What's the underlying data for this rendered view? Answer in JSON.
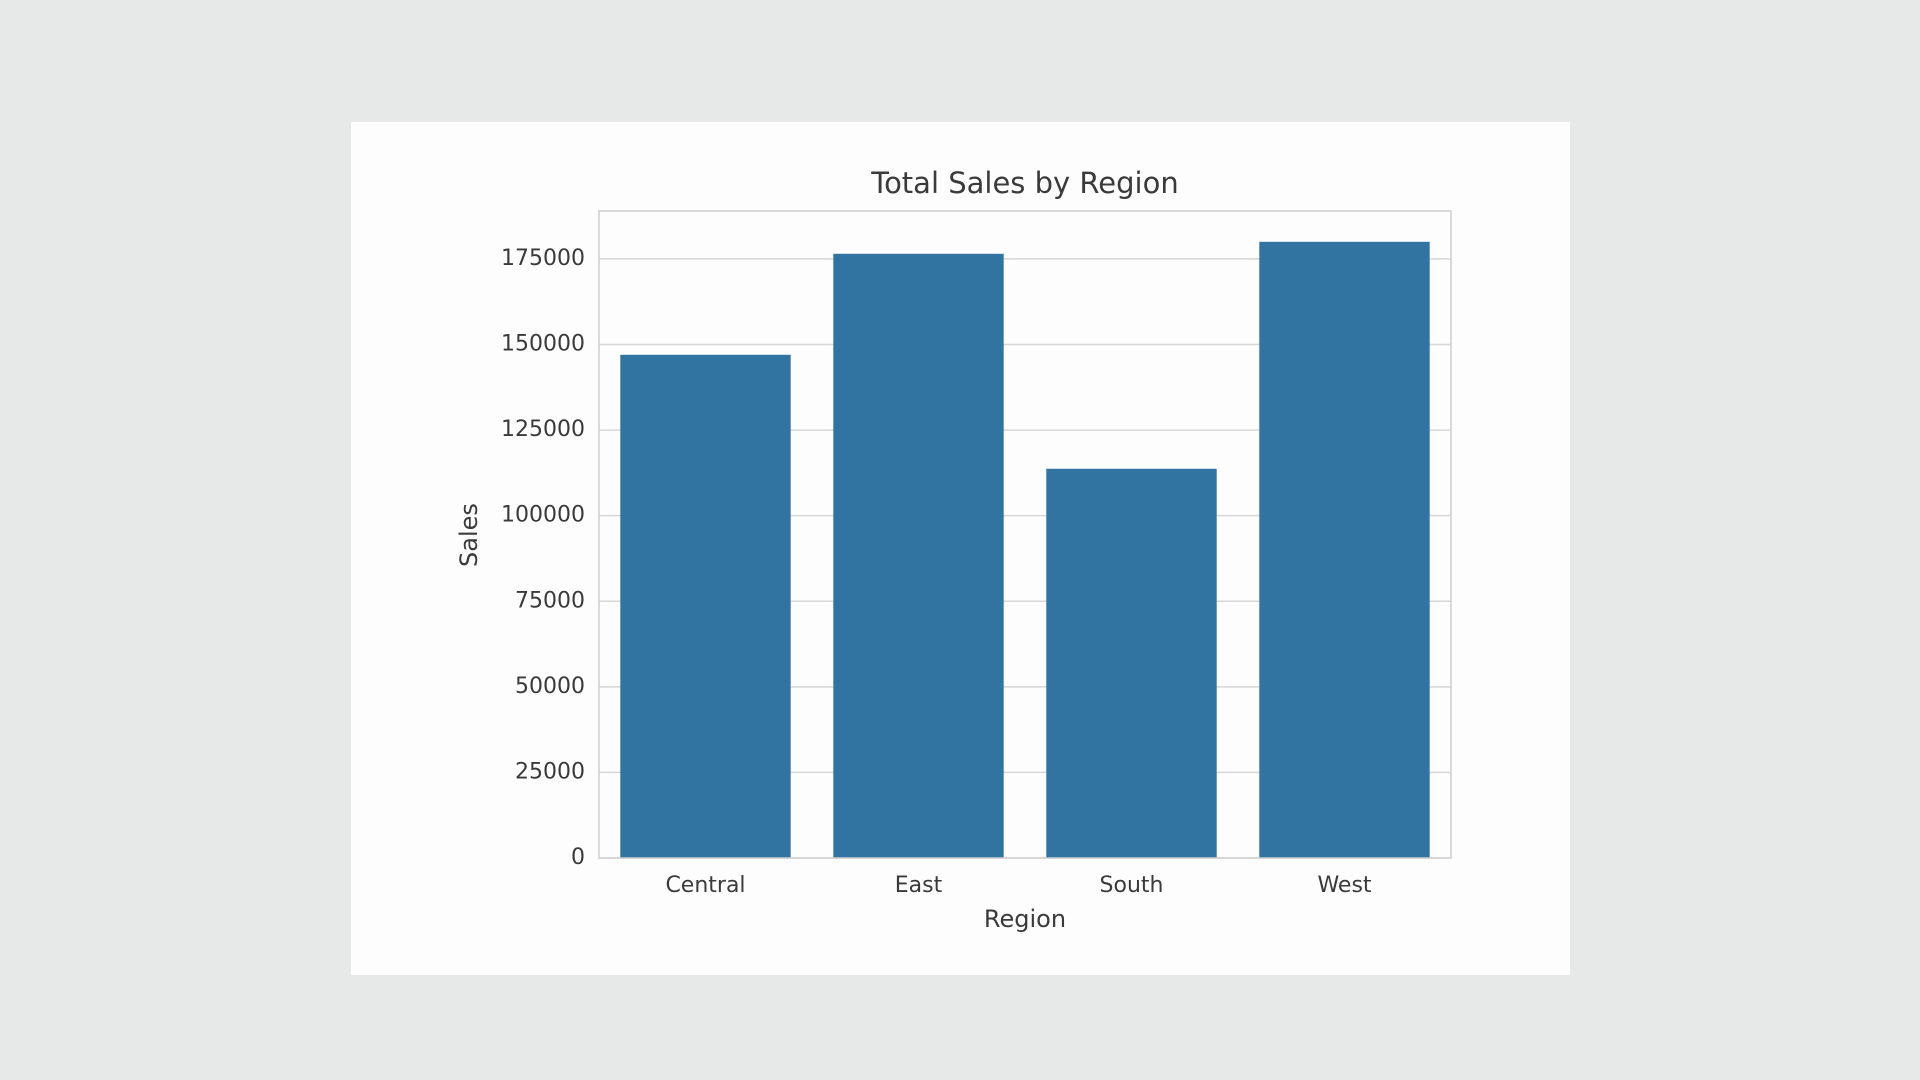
{
  "chart_data": {
    "type": "bar",
    "title": "Total Sales by Region",
    "x_label": "Region",
    "y_label": "Sales",
    "categories": [
      "Central",
      "East",
      "South",
      "West"
    ],
    "values": [
      147000,
      176500,
      113700,
      180000
    ],
    "color": "#3274a1",
    "ylim": [
      0,
      189000
    ],
    "yticks": [
      0,
      25000,
      50000,
      75000,
      100000,
      125000,
      150000,
      175000
    ],
    "grid": true
  }
}
